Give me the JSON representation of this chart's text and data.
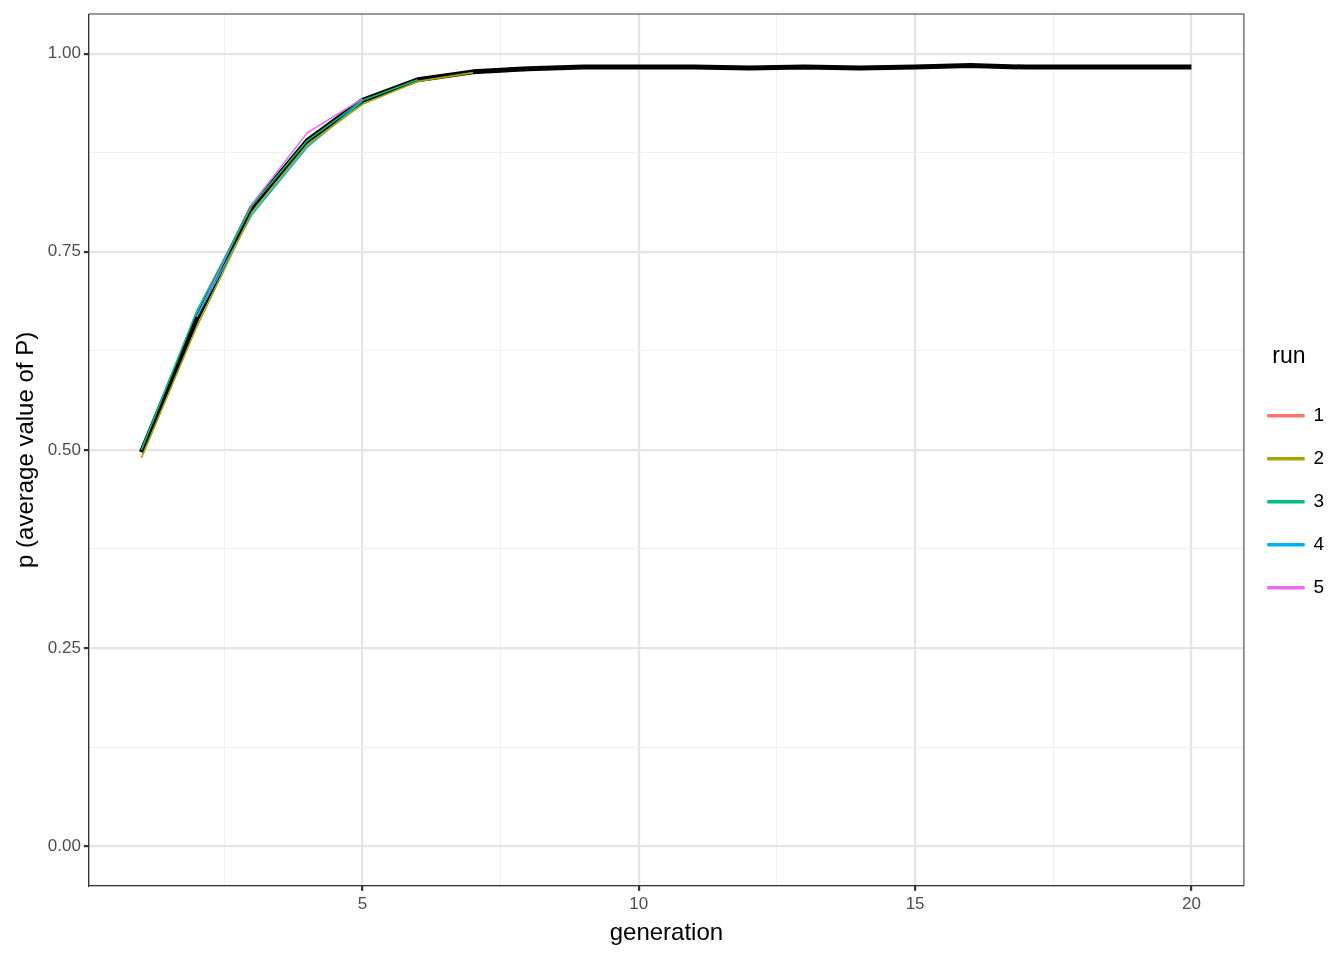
{
  "chart_data": {
    "type": "line",
    "xlabel": "generation",
    "ylabel": "p (average value of P)",
    "legend_title": "run",
    "legend": "right",
    "grid": true,
    "marker": "none",
    "line_style": "solid",
    "x": [
      1,
      2,
      3,
      4,
      5,
      6,
      7,
      8,
      9,
      10,
      11,
      12,
      13,
      14,
      15,
      16,
      17,
      18,
      19,
      20
    ],
    "xlim": [
      0.05,
      20.95
    ],
    "xticks": [
      {
        "value": 2.5,
        "label": null
      },
      5,
      {
        "value": 7.5,
        "label": null
      },
      10,
      {
        "value": 12.5,
        "label": null
      },
      15,
      {
        "value": 17.5,
        "label": null
      },
      20
    ],
    "ylim": [
      -0.05,
      1.05
    ],
    "yticks": [
      {
        "value": 0,
        "label": "0.00"
      },
      {
        "value": 0.125,
        "label": null
      },
      {
        "value": 0.25,
        "label": "0.25"
      },
      {
        "value": 0.375,
        "label": null
      },
      {
        "value": 0.5,
        "label": "0.50"
      },
      {
        "value": 0.625,
        "label": null
      },
      {
        "value": 0.75,
        "label": "0.75"
      },
      {
        "value": 0.875,
        "label": null
      },
      {
        "value": 1,
        "label": "1.00"
      }
    ],
    "series": [
      {
        "name": "1",
        "color": "#f8766d",
        "values": [
          null,
          null,
          null,
          null,
          null,
          null,
          null,
          null,
          null,
          null,
          null,
          null,
          null,
          null,
          null,
          null,
          null,
          null,
          null,
          null
        ]
      },
      {
        "name": "2",
        "color": "#a3a500",
        "values": [
          0.49,
          0.655,
          0.8,
          0.885,
          0.936,
          0.965,
          0.976,
          null,
          null,
          null,
          null,
          null,
          null,
          null,
          null,
          null,
          null,
          null,
          null,
          null
        ]
      },
      {
        "name": "3",
        "color": "#00bf7d",
        "values": [
          0.5,
          0.675,
          0.808,
          0.89,
          0.941,
          0.967,
          null,
          null,
          null,
          null,
          null,
          null,
          null,
          null,
          null,
          null,
          null,
          null,
          null,
          null
        ]
      },
      {
        "name": "4",
        "color": "#00b0f6",
        "values": [
          null,
          0.668,
          0.797,
          0.882,
          0.94,
          null,
          null,
          null,
          null,
          null,
          null,
          null,
          null,
          null,
          null,
          null,
          null,
          null,
          null,
          null
        ]
      },
      {
        "name": "5",
        "color": "#e76bf3",
        "values": [
          null,
          0.668,
          0.81,
          0.9,
          0.943,
          null,
          null,
          null,
          null,
          null,
          null,
          null,
          null,
          null,
          null,
          null,
          null,
          null,
          null,
          null
        ]
      },
      {
        "color": "#000000",
        "values": [
          0.497,
          0.665,
          0.806,
          0.89,
          0.941,
          0.967,
          0.977,
          0.981,
          0.983,
          0.983,
          0.983,
          0.982,
          0.983,
          0.982,
          0.983,
          0.985,
          0.983,
          0.983,
          0.983,
          0.983
        ]
      }
    ]
  }
}
